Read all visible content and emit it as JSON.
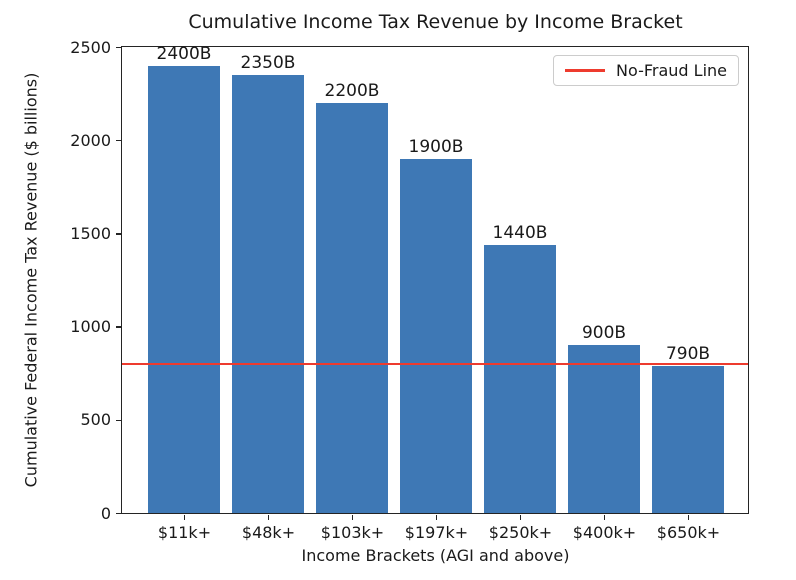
{
  "chart_data": {
    "type": "bar",
    "title": "Cumulative Income Tax Revenue by Income Bracket",
    "xlabel": "Income Brackets (AGI and above)",
    "ylabel": "Cumulative Federal Income Tax Revenue ($ billions)",
    "categories": [
      "$11k+",
      "$48k+",
      "$103k+",
      "$197k+",
      "$250k+",
      "$400k+",
      "$650k+"
    ],
    "values": [
      2400,
      2350,
      2200,
      1900,
      1440,
      900,
      790
    ],
    "bar_labels": [
      "2400B",
      "2350B",
      "2200B",
      "1900B",
      "1440B",
      "900B",
      "790B"
    ],
    "bar_color": "#3e78b5",
    "yticks": [
      0,
      500,
      1000,
      1500,
      2000,
      2500
    ],
    "ylim": [
      0,
      2500
    ],
    "grid": false,
    "legend": {
      "position": "upper right",
      "entries": [
        {
          "label": "No-Fraud Line",
          "marker": "line",
          "color": "#ee3b2e"
        }
      ]
    },
    "reference_line": {
      "type": "horizontal",
      "value": 800,
      "label": "No-Fraud Line",
      "color": "#ee3b2e"
    }
  }
}
